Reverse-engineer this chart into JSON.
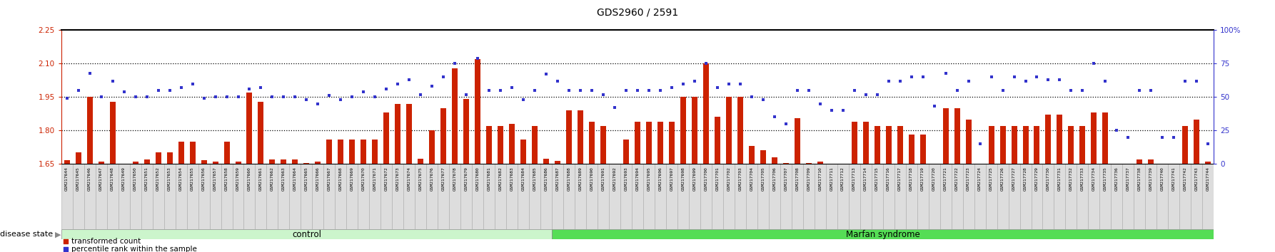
{
  "title": "GDS2960 / 2591",
  "ylim_left": [
    1.65,
    2.25
  ],
  "ylim_right": [
    0,
    100
  ],
  "yticks_left": [
    1.65,
    1.8,
    1.95,
    2.1,
    2.25
  ],
  "yticks_right": [
    0,
    25,
    50,
    75,
    100
  ],
  "hlines": [
    1.8,
    1.95,
    2.1
  ],
  "bar_baseline": 1.65,
  "bar_color": "#cc2200",
  "dot_color": "#3333cc",
  "left_axis_color": "#cc2200",
  "right_axis_color": "#3333cc",
  "control_color": "#ccf5cc",
  "marfan_color": "#55dd55",
  "control_label": "control",
  "marfan_label": "Marfan syndrome",
  "disease_state_label": "disease state",
  "legend_bar_label": "transformed count",
  "legend_dot_label": "percentile rank within the sample",
  "samples": [
    "GSM217644",
    "GSM217645",
    "GSM217646",
    "GSM217647",
    "GSM217648",
    "GSM217649",
    "GSM217650",
    "GSM217651",
    "GSM217652",
    "GSM217653",
    "GSM217654",
    "GSM217655",
    "GSM217656",
    "GSM217657",
    "GSM217658",
    "GSM217659",
    "GSM217660",
    "GSM217661",
    "GSM217662",
    "GSM217663",
    "GSM217664",
    "GSM217665",
    "GSM217666",
    "GSM217667",
    "GSM217668",
    "GSM217669",
    "GSM217670",
    "GSM217671",
    "GSM217672",
    "GSM217673",
    "GSM217674",
    "GSM217675",
    "GSM217676",
    "GSM217677",
    "GSM217678",
    "GSM217679",
    "GSM217680",
    "GSM217681",
    "GSM217682",
    "GSM217683",
    "GSM217684",
    "GSM217685",
    "GSM217686",
    "GSM217687",
    "GSM217688",
    "GSM217689",
    "GSM217690",
    "GSM217691",
    "GSM217692",
    "GSM217693",
    "GSM217694",
    "GSM217695",
    "GSM217696",
    "GSM217697",
    "GSM217698",
    "GSM217699",
    "GSM217700",
    "GSM217701",
    "GSM217702",
    "GSM217703",
    "GSM217704",
    "GSM217705",
    "GSM217706",
    "GSM217707",
    "GSM217708",
    "GSM217709",
    "GSM217710",
    "GSM217711",
    "GSM217712",
    "GSM217713",
    "GSM217714",
    "GSM217715",
    "GSM217716",
    "GSM217717",
    "GSM217718",
    "GSM217719",
    "GSM217720",
    "GSM217721",
    "GSM217722",
    "GSM217723",
    "GSM217724",
    "GSM217725",
    "GSM217726",
    "GSM217727",
    "GSM217728",
    "GSM217729",
    "GSM217730",
    "GSM217731",
    "GSM217732",
    "GSM217733",
    "GSM217734",
    "GSM217735",
    "GSM217736",
    "GSM217737",
    "GSM217738",
    "GSM217739",
    "GSM217740",
    "GSM217741",
    "GSM217742",
    "GSM217743",
    "GSM217744"
  ],
  "bar_heights": [
    1.665,
    1.7,
    1.95,
    1.66,
    1.93,
    1.651,
    1.66,
    1.671,
    1.7,
    1.7,
    1.75,
    1.75,
    1.665,
    1.66,
    1.75,
    1.66,
    1.97,
    1.93,
    1.67,
    1.67,
    1.67,
    1.653,
    1.66,
    1.76,
    1.76,
    1.76,
    1.76,
    1.76,
    1.88,
    1.92,
    1.92,
    1.672,
    1.8,
    1.9,
    2.08,
    1.94,
    2.12,
    1.82,
    1.82,
    1.83,
    1.76,
    1.82,
    1.672,
    1.662,
    1.89,
    1.89,
    1.84,
    1.82,
    1.651,
    1.76,
    1.84,
    1.84,
    1.84,
    1.84,
    1.95,
    1.95,
    2.1,
    1.86,
    1.95,
    1.95,
    1.73,
    1.71,
    1.68,
    1.653,
    1.855,
    1.653,
    1.66,
    1.651,
    1.651,
    1.84,
    1.84,
    1.82,
    1.82,
    1.82,
    1.78,
    1.78,
    1.651,
    1.9,
    1.9,
    1.85,
    1.651,
    1.82,
    1.82,
    1.82,
    1.82,
    1.82,
    1.87,
    1.87,
    1.82,
    1.82,
    1.88,
    1.88,
    1.651,
    1.651,
    1.67,
    1.67,
    1.651,
    1.651,
    1.82,
    1.85,
    1.66
  ],
  "dot_values_right": [
    49,
    55,
    68,
    50,
    62,
    54,
    50,
    50,
    55,
    55,
    57,
    60,
    49,
    50,
    50,
    50,
    56,
    57,
    50,
    50,
    50,
    48,
    45,
    51,
    48,
    50,
    54,
    50,
    56,
    60,
    63,
    52,
    58,
    65,
    75,
    52,
    79,
    55,
    55,
    57,
    48,
    55,
    67,
    62,
    55,
    55,
    55,
    52,
    42,
    55,
    55,
    55,
    55,
    57,
    60,
    62,
    75,
    57,
    60,
    60,
    50,
    48,
    35,
    30,
    55,
    55,
    45,
    40,
    40,
    55,
    52,
    52,
    62,
    62,
    65,
    65,
    43,
    68,
    55,
    62,
    15,
    65,
    55,
    65,
    62,
    65,
    63,
    63,
    55,
    55,
    75,
    62,
    25,
    20,
    55,
    55,
    20,
    20,
    62,
    62,
    15
  ],
  "n_control": 43,
  "n_marfan": 58
}
